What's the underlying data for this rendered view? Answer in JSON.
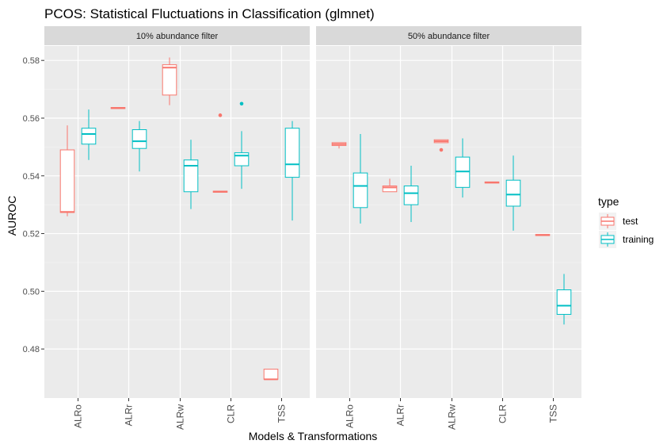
{
  "chart_data": {
    "type": "boxplot",
    "title": "PCOS: Statistical Fluctuations in Classification (glmnet)",
    "xlabel": "Models & Transformations",
    "ylabel": "AUROC",
    "ylim": [
      0.463,
      0.585
    ],
    "yticks": [
      0.48,
      0.5,
      0.52,
      0.54,
      0.56,
      0.58
    ],
    "yticklabels": [
      "0.48",
      "0.50",
      "0.52",
      "0.54",
      "0.56",
      "0.58"
    ],
    "categories": [
      "ALRo",
      "ALRr",
      "ALRw",
      "CLR",
      "TSS"
    ],
    "grid": true,
    "legend": {
      "title": "type",
      "position": "right",
      "entries": [
        {
          "name": "test",
          "color": "#F8766D"
        },
        {
          "name": "training",
          "color": "#00BFC4"
        }
      ]
    },
    "colors": {
      "test": "#F8766D",
      "training": "#00BFC4",
      "panel_bg": "#EBEBEB",
      "strip_bg": "#D9D9D9"
    },
    "panels": [
      {
        "label": "10% abundance filter",
        "boxes": [
          {
            "category": "ALRo",
            "type": "test",
            "q1": 0.5273,
            "median": 0.5275,
            "q3": 0.549,
            "wlow": 0.526,
            "whigh": 0.5575,
            "outliers": []
          },
          {
            "category": "ALRo",
            "type": "training",
            "q1": 0.551,
            "median": 0.5545,
            "q3": 0.5565,
            "wlow": 0.5455,
            "whigh": 0.563,
            "outliers": []
          },
          {
            "category": "ALRr",
            "type": "test",
            "q1": 0.5633,
            "median": 0.5635,
            "q3": 0.5637,
            "wlow": 0.5633,
            "whigh": 0.5637,
            "outliers": []
          },
          {
            "category": "ALRr",
            "type": "training",
            "q1": 0.5495,
            "median": 0.552,
            "q3": 0.556,
            "wlow": 0.5415,
            "whigh": 0.559,
            "outliers": []
          },
          {
            "category": "ALRw",
            "type": "test",
            "q1": 0.568,
            "median": 0.5775,
            "q3": 0.5785,
            "wlow": 0.5645,
            "whigh": 0.581,
            "outliers": []
          },
          {
            "category": "ALRw",
            "type": "training",
            "q1": 0.5345,
            "median": 0.5435,
            "q3": 0.5455,
            "wlow": 0.5285,
            "whigh": 0.5525,
            "outliers": []
          },
          {
            "category": "CLR",
            "type": "test",
            "q1": 0.5343,
            "median": 0.5345,
            "q3": 0.5347,
            "wlow": 0.5343,
            "whigh": 0.5347,
            "outliers": [
              0.561
            ]
          },
          {
            "category": "CLR",
            "type": "training",
            "q1": 0.5435,
            "median": 0.547,
            "q3": 0.548,
            "wlow": 0.5355,
            "whigh": 0.5555,
            "outliers": [
              0.565
            ]
          },
          {
            "category": "TSS",
            "type": "test",
            "q1": 0.4695,
            "median": 0.4695,
            "q3": 0.473,
            "wlow": 0.4695,
            "whigh": 0.473,
            "outliers": []
          },
          {
            "category": "TSS",
            "type": "training",
            "q1": 0.5395,
            "median": 0.544,
            "q3": 0.5565,
            "wlow": 0.5245,
            "whigh": 0.559,
            "outliers": []
          }
        ]
      },
      {
        "label": "50% abundance filter",
        "boxes": [
          {
            "category": "ALRo",
            "type": "test",
            "q1": 0.5505,
            "median": 0.551,
            "q3": 0.5515,
            "wlow": 0.5495,
            "whigh": 0.5515,
            "outliers": []
          },
          {
            "category": "ALRo",
            "type": "training",
            "q1": 0.529,
            "median": 0.5365,
            "q3": 0.541,
            "wlow": 0.5235,
            "whigh": 0.5545,
            "outliers": []
          },
          {
            "category": "ALRr",
            "type": "test",
            "q1": 0.5345,
            "median": 0.536,
            "q3": 0.5365,
            "wlow": 0.5345,
            "whigh": 0.539,
            "outliers": []
          },
          {
            "category": "ALRr",
            "type": "training",
            "q1": 0.53,
            "median": 0.534,
            "q3": 0.5365,
            "wlow": 0.524,
            "whigh": 0.5435,
            "outliers": []
          },
          {
            "category": "ALRw",
            "type": "test",
            "q1": 0.5515,
            "median": 0.552,
            "q3": 0.5525,
            "wlow": 0.5515,
            "whigh": 0.5525,
            "outliers": [
              0.549
            ]
          },
          {
            "category": "ALRw",
            "type": "training",
            "q1": 0.536,
            "median": 0.5415,
            "q3": 0.5465,
            "wlow": 0.5325,
            "whigh": 0.553,
            "outliers": []
          },
          {
            "category": "CLR",
            "type": "test",
            "q1": 0.5375,
            "median": 0.5377,
            "q3": 0.5379,
            "wlow": 0.5375,
            "whigh": 0.5379,
            "outliers": []
          },
          {
            "category": "CLR",
            "type": "training",
            "q1": 0.5295,
            "median": 0.5335,
            "q3": 0.5385,
            "wlow": 0.521,
            "whigh": 0.547,
            "outliers": []
          },
          {
            "category": "TSS",
            "type": "test",
            "q1": 0.5193,
            "median": 0.5195,
            "q3": 0.5197,
            "wlow": 0.5193,
            "whigh": 0.5197,
            "outliers": []
          },
          {
            "category": "TSS",
            "type": "training",
            "q1": 0.492,
            "median": 0.495,
            "q3": 0.5005,
            "wlow": 0.4885,
            "whigh": 0.506,
            "outliers": []
          }
        ]
      }
    ]
  }
}
